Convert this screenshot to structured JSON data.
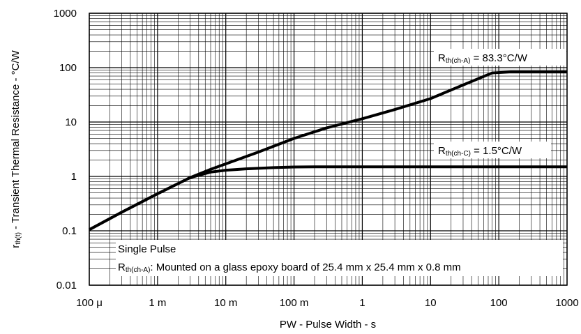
{
  "chart_data": {
    "type": "line",
    "x_scale": "log",
    "y_scale": "log",
    "xlim": [
      0.0001,
      1000
    ],
    "ylim": [
      0.01,
      1000
    ],
    "grid": true,
    "xlabel": "PW - Pulse Width - s",
    "ylabel": {
      "symbol": "r",
      "subscript": "th(t)",
      "text": " - Transient Thermal Resistance - °C/W"
    },
    "x_ticks": [
      {
        "value": 0.0001,
        "label": "100 μ"
      },
      {
        "value": 0.001,
        "label": "1 m"
      },
      {
        "value": 0.01,
        "label": "10 m"
      },
      {
        "value": 0.1,
        "label": "100 m"
      },
      {
        "value": 1,
        "label": "1"
      },
      {
        "value": 10,
        "label": "10"
      },
      {
        "value": 100,
        "label": "100"
      },
      {
        "value": 1000,
        "label": "1000"
      }
    ],
    "y_ticks": [
      {
        "value": 0.01,
        "label": "0.01"
      },
      {
        "value": 0.1,
        "label": "0.1"
      },
      {
        "value": 1,
        "label": "1"
      },
      {
        "value": 10,
        "label": "10"
      },
      {
        "value": 100,
        "label": "100"
      },
      {
        "value": 1000,
        "label": "1000"
      }
    ],
    "series": [
      {
        "x": [
          0.0001,
          0.0003,
          0.001,
          0.003,
          0.006,
          0.01,
          0.03,
          0.1,
          0.3,
          1,
          3,
          10,
          30,
          80,
          150,
          1000
        ],
        "y": [
          0.105,
          0.22,
          0.48,
          0.95,
          1.35,
          1.7,
          2.8,
          5.0,
          7.8,
          11.5,
          17,
          27,
          48,
          80,
          83.3,
          83.3
        ]
      },
      {
        "x": [
          0.0001,
          0.0003,
          0.001,
          0.003,
          0.006,
          0.01,
          0.02,
          0.05,
          0.1,
          0.2,
          1,
          10,
          100,
          1000
        ],
        "y": [
          0.105,
          0.22,
          0.48,
          0.95,
          1.2,
          1.3,
          1.38,
          1.45,
          1.49,
          1.5,
          1.5,
          1.5,
          1.5,
          1.5
        ]
      }
    ],
    "annotations": [
      {
        "prefix": "R",
        "subscript": "th(ch-A)",
        "text": " = 83.3°C/W"
      },
      {
        "prefix": "R",
        "subscript": "th(ch-C)",
        "text": " = 1.5°C/W"
      }
    ],
    "note": {
      "line1": "Single Pulse",
      "line2_prefix": "R",
      "line2_subscript": "th(ch-A)",
      "line2_text": ": Mounted on a glass epoxy board of 25.4 mm x 25.4 mm x 0.8 mm"
    }
  }
}
